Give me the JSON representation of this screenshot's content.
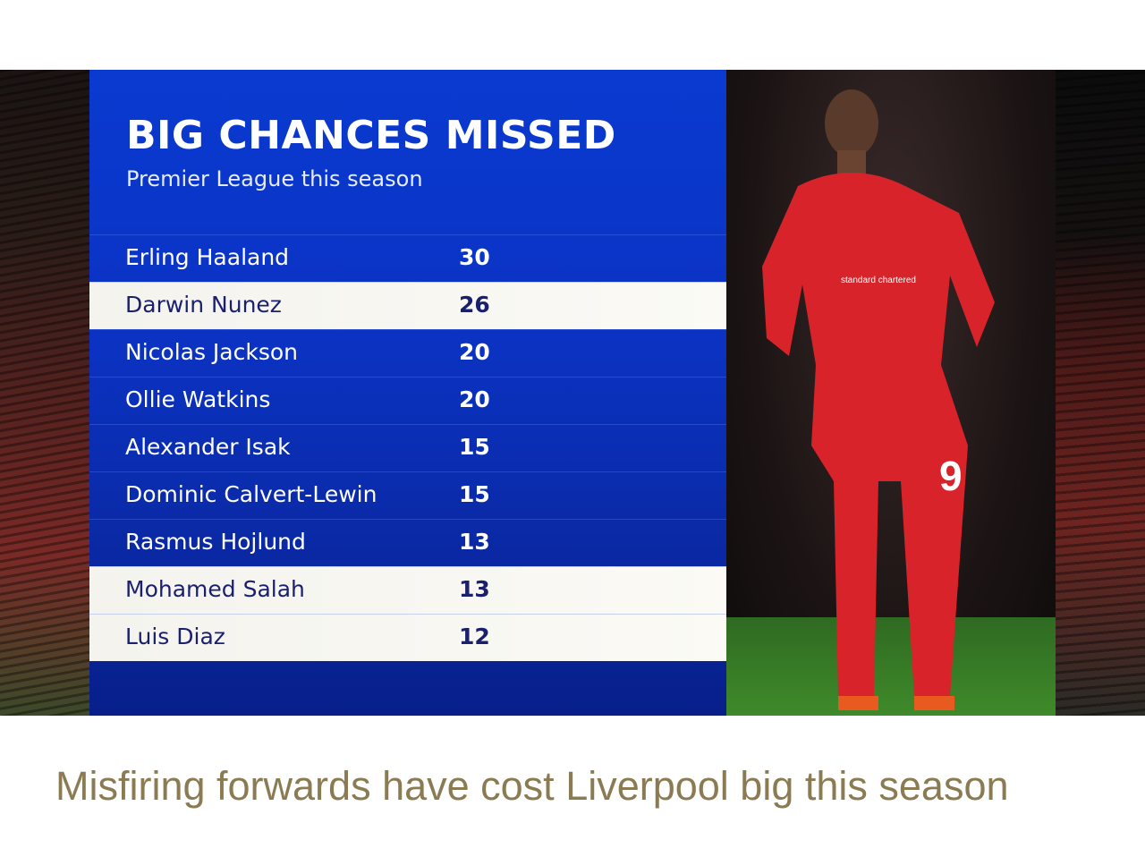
{
  "graphic": {
    "title": "BIG CHANCES MISSED",
    "subtitle": "Premier League this season",
    "rows": [
      {
        "name": "Erling Haaland",
        "value": "30",
        "highlighted": false
      },
      {
        "name": "Darwin Nunez",
        "value": "26",
        "highlighted": true
      },
      {
        "name": "Nicolas Jackson",
        "value": "20",
        "highlighted": false
      },
      {
        "name": "Ollie Watkins",
        "value": "20",
        "highlighted": false
      },
      {
        "name": "Alexander Isak",
        "value": "15",
        "highlighted": false
      },
      {
        "name": "Dominic Calvert-Lewin",
        "value": "15",
        "highlighted": false
      },
      {
        "name": "Rasmus Hojlund",
        "value": "13",
        "highlighted": false
      },
      {
        "name": "Mohamed Salah",
        "value": "13",
        "highlighted": true
      },
      {
        "name": "Luis Diaz",
        "value": "12",
        "highlighted": true
      }
    ],
    "colors": {
      "panel": "#0a3ad0",
      "highlight_row": "#f4f3ee",
      "highlight_text": "#1a1f6e",
      "shirt": "#d8232a"
    },
    "shirt_number": "9",
    "sponsor_logo_text": "standard chartered"
  },
  "caption": "Misfiring forwards have cost Liverpool big this season"
}
